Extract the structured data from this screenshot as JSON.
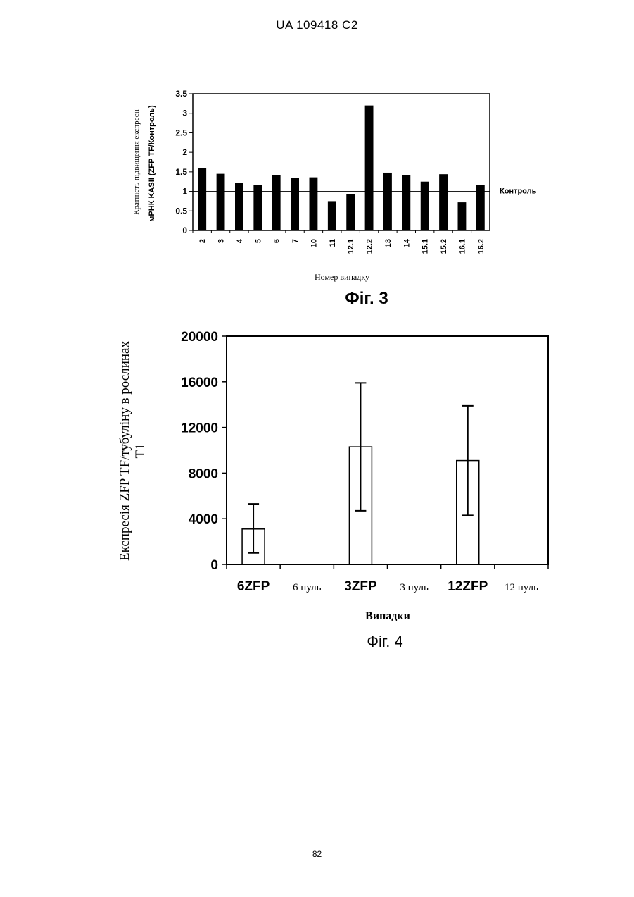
{
  "header": {
    "doc_id": "UA   109418   C2"
  },
  "page_number": "82",
  "chart_data": [
    {
      "type": "bar",
      "title": "",
      "caption": "Фіг. 3",
      "xlabel": "Номер випадку",
      "ylabel_line1": "Кратність підвищення експресії",
      "ylabel_line2": "мРНК  KASII (ZFP TF/Контроль)",
      "categories": [
        "2",
        "3",
        "4",
        "5",
        "6",
        "7",
        "10",
        "11",
        "12.1",
        "12.2",
        "13",
        "14",
        "15.1",
        "15.2",
        "16.1",
        "16.2"
      ],
      "values": [
        1.6,
        1.45,
        1.22,
        1.16,
        1.42,
        1.34,
        1.36,
        0.75,
        0.93,
        3.2,
        1.48,
        1.42,
        1.25,
        1.44,
        0.72,
        1.16
      ],
      "ylim": [
        0,
        3.5
      ],
      "yticks": [
        "0",
        "0.5",
        "1",
        "1.5",
        "2",
        "2.5",
        "3",
        "3.5"
      ],
      "ytick_values": [
        0,
        0.5,
        1,
        1.5,
        2,
        2.5,
        3,
        3.5
      ],
      "reference_line": {
        "value": 1,
        "label": "Контроль"
      },
      "bar_color": "#000000",
      "grid": false
    },
    {
      "type": "bar",
      "title": "",
      "caption": "Фіг. 4",
      "xlabel": "Випадки",
      "ylabel_line1": "Експресія ZFP TF/тубуліну в рослинах",
      "ylabel_line2": "T1",
      "categories": [
        "6ZFP",
        "6 нуль",
        "3ZFP",
        "3 нуль",
        "12ZFP",
        "12 нуль"
      ],
      "category_bold": [
        true,
        false,
        true,
        false,
        true,
        false
      ],
      "values": [
        3100,
        0,
        10300,
        0,
        9100,
        0
      ],
      "error_low": [
        1000,
        0,
        4700,
        0,
        4300,
        0
      ],
      "error_high": [
        5300,
        0,
        15900,
        0,
        13900,
        0
      ],
      "ylim": [
        0,
        20000
      ],
      "yticks": [
        "0",
        "4000",
        "8000",
        "12000",
        "16000",
        "20000"
      ],
      "ytick_values": [
        0,
        4000,
        8000,
        12000,
        16000,
        20000
      ],
      "bar_color": "#ffffff",
      "grid": false
    }
  ]
}
